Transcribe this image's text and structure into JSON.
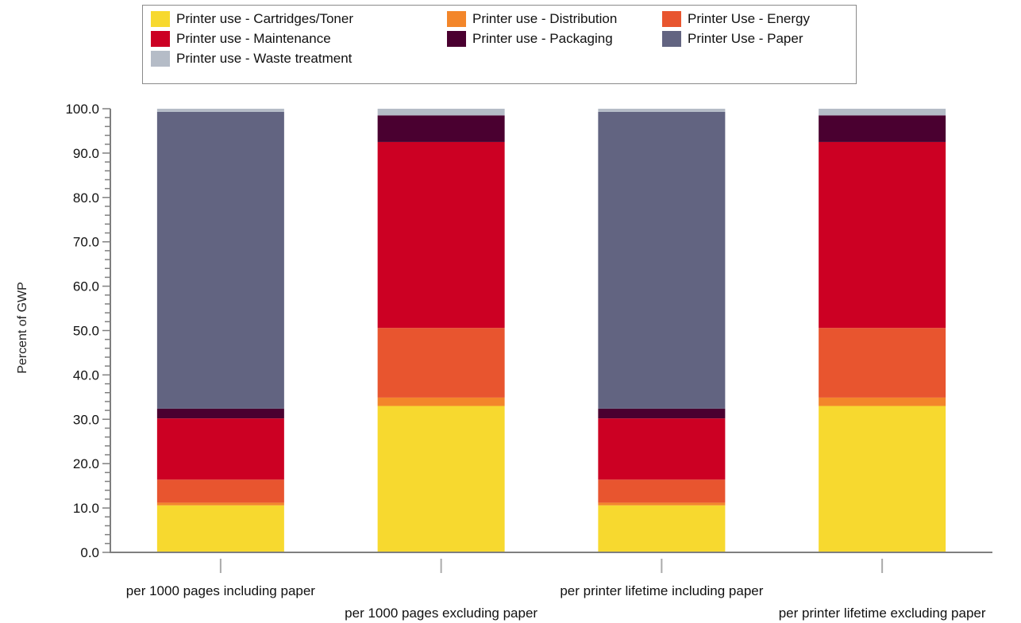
{
  "chart_data": {
    "type": "bar",
    "stacked": true,
    "categories": [
      "per 1000 pages including paper",
      "per 1000 pages excluding paper",
      "per printer lifetime including paper",
      "per printer lifetime excluding paper"
    ],
    "series": [
      {
        "name": "Printer use - Cartridges/Toner",
        "color": "#f7d92f",
        "values": [
          10.6,
          33.0,
          10.6,
          33.0
        ]
      },
      {
        "name": "Printer use - Distribution",
        "color": "#f3862a",
        "values": [
          0.6,
          1.9,
          0.6,
          1.9
        ]
      },
      {
        "name": "Printer Use - Energy",
        "color": "#e8552f",
        "values": [
          5.2,
          15.7,
          5.2,
          15.7
        ]
      },
      {
        "name": "Printer use - Maintenance",
        "color": "#cc0023",
        "values": [
          13.8,
          41.9,
          13.8,
          41.9
        ]
      },
      {
        "name": "Printer use - Packaging",
        "color": "#4a0030",
        "values": [
          2.2,
          6.0,
          2.2,
          6.0
        ]
      },
      {
        "name": "Printer Use - Paper",
        "color": "#626481",
        "values": [
          66.9,
          0.0,
          66.9,
          0.0
        ]
      },
      {
        "name": "Printer use - Waste treatment",
        "color": "#b5bcc7",
        "values": [
          0.7,
          1.5,
          0.7,
          1.5
        ]
      }
    ],
    "ylabel": "Percent of GWP",
    "xlabel": "",
    "ylim": [
      0,
      100
    ],
    "yticks": [
      "0.0",
      "10.0",
      "20.0",
      "30.0",
      "40.0",
      "50.0",
      "60.0",
      "70.0",
      "80.0",
      "90.0",
      "100.0"
    ],
    "grid": false,
    "legend_position": "top"
  }
}
